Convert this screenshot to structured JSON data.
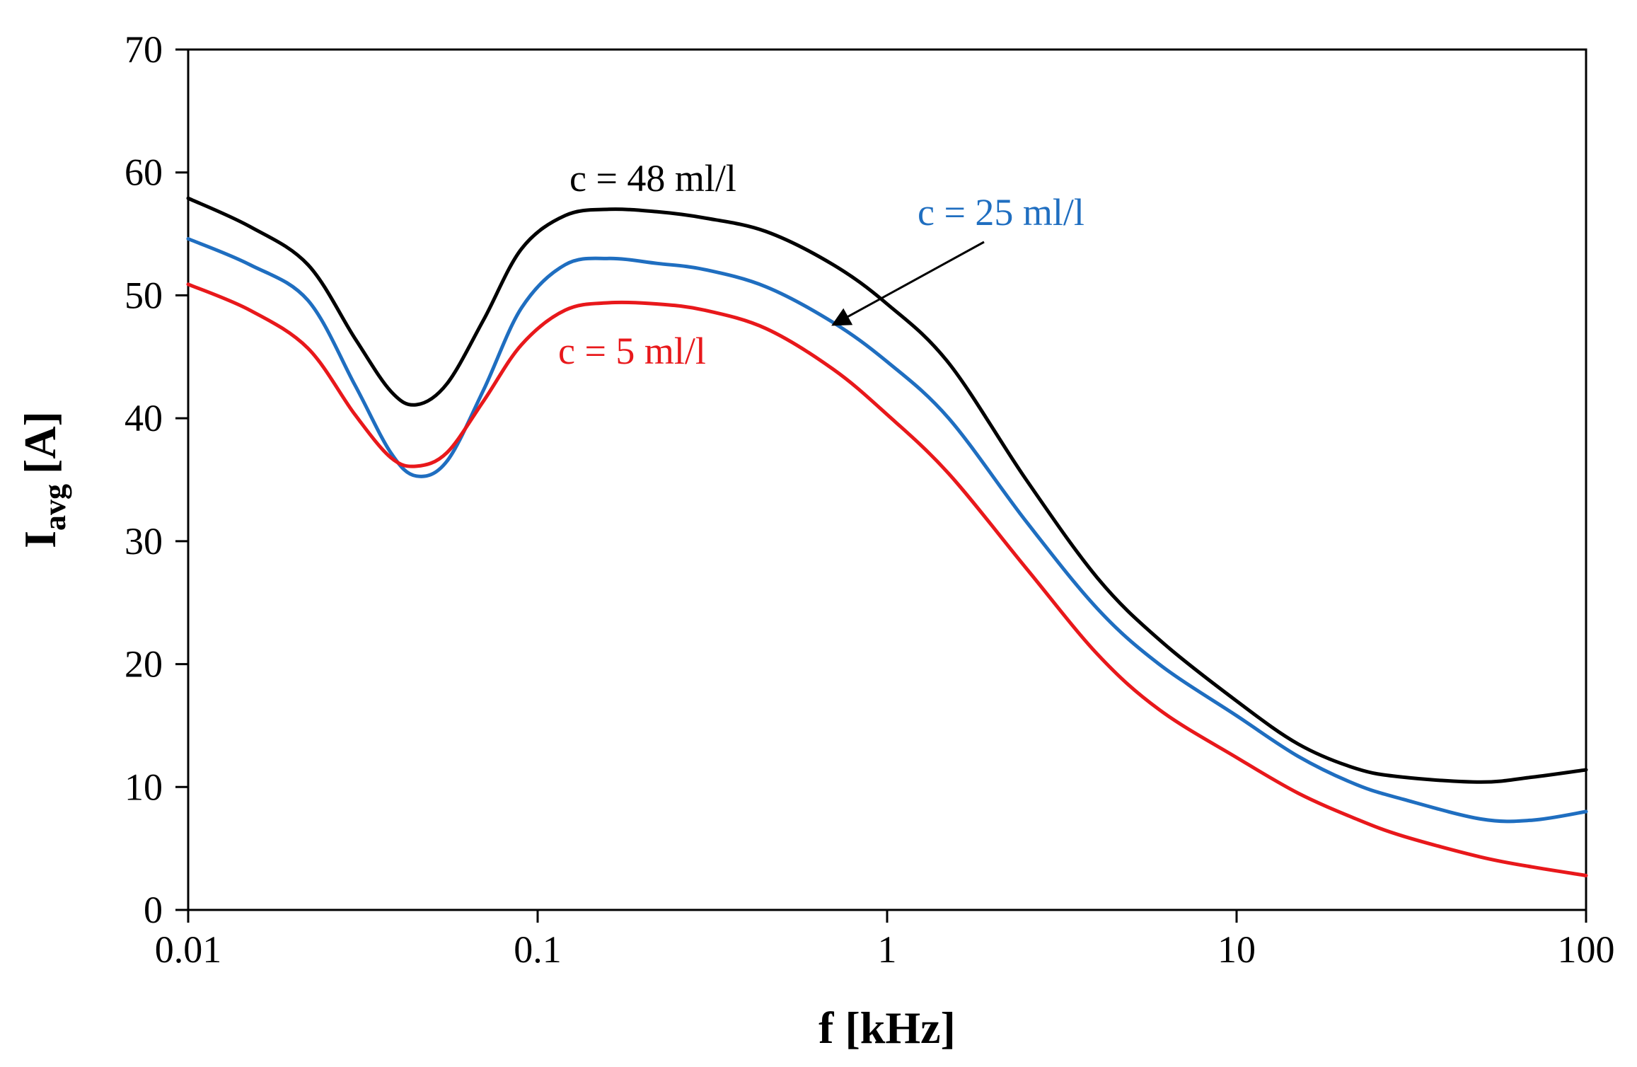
{
  "chart_data": {
    "type": "line",
    "xscale": "log",
    "xlim": [
      0.01,
      100
    ],
    "ylim": [
      0,
      70
    ],
    "xticks": [
      0.01,
      0.1,
      1,
      10,
      100
    ],
    "xtick_labels": [
      "0.01",
      "0.1",
      "1",
      "10",
      "100"
    ],
    "yticks": [
      0,
      10,
      20,
      30,
      40,
      50,
      60,
      70
    ],
    "ytick_labels": [
      "0",
      "10",
      "20",
      "30",
      "40",
      "50",
      "60",
      "70"
    ],
    "xlabel": "f [kHz]",
    "ylabel_main": "I",
    "ylabel_sub": "avg",
    "ylabel_unit": "[A]",
    "grid": false,
    "series": [
      {
        "name": "c = 48 ml/l",
        "color": "#000000",
        "x": [
          0.01,
          0.015,
          0.022,
          0.03,
          0.038,
          0.045,
          0.055,
          0.07,
          0.09,
          0.12,
          0.16,
          0.22,
          0.3,
          0.45,
          0.7,
          1,
          1.5,
          2.5,
          4,
          6,
          10,
          15,
          22,
          30,
          50,
          70,
          100
        ],
        "y": [
          57.9,
          55.6,
          52.5,
          46.5,
          42.2,
          41.1,
          42.8,
          48.0,
          53.8,
          56.5,
          57.0,
          56.8,
          56.3,
          55.2,
          52.5,
          49.3,
          44.5,
          35.0,
          27.0,
          22.0,
          17.0,
          13.5,
          11.5,
          10.8,
          10.4,
          10.8,
          11.4
        ]
      },
      {
        "name": "c = 25 ml/l",
        "color": "#1F6EC0",
        "x": [
          0.01,
          0.015,
          0.022,
          0.03,
          0.038,
          0.045,
          0.055,
          0.07,
          0.09,
          0.12,
          0.16,
          0.22,
          0.3,
          0.45,
          0.7,
          1,
          1.5,
          2.5,
          4,
          6,
          10,
          15,
          22,
          30,
          50,
          70,
          100
        ],
        "y": [
          54.6,
          52.5,
          49.6,
          42.7,
          37.2,
          35.3,
          36.5,
          42.3,
          49.0,
          52.5,
          53.0,
          52.6,
          52.1,
          50.7,
          47.8,
          44.6,
          40.0,
          31.6,
          24.5,
          20.0,
          15.8,
          12.5,
          10.2,
          9.0,
          7.4,
          7.3,
          8.0
        ]
      },
      {
        "name": "c = 5 ml/l",
        "color": "#E8181B",
        "x": [
          0.01,
          0.015,
          0.022,
          0.03,
          0.038,
          0.045,
          0.055,
          0.07,
          0.09,
          0.12,
          0.16,
          0.22,
          0.3,
          0.45,
          0.7,
          1,
          1.5,
          2.5,
          4,
          6,
          10,
          15,
          22,
          30,
          50,
          70,
          100
        ],
        "y": [
          50.9,
          48.8,
          45.7,
          40.3,
          36.8,
          36.1,
          37.2,
          41.4,
          46.0,
          48.8,
          49.4,
          49.3,
          48.8,
          47.3,
          44.0,
          40.3,
          35.5,
          27.8,
          20.8,
          16.3,
          12.4,
          9.5,
          7.4,
          6.0,
          4.3,
          3.5,
          2.8
        ]
      }
    ],
    "annotations": [
      {
        "text": "c = 48 ml/l",
        "color": "#000000"
      },
      {
        "text": "c = 25 ml/l",
        "color": "#1F6EC0",
        "arrow_to": {
          "x": 0.7,
          "y": 47.6
        }
      },
      {
        "text": "c = 5 ml/l",
        "color": "#E8181B"
      }
    ]
  }
}
